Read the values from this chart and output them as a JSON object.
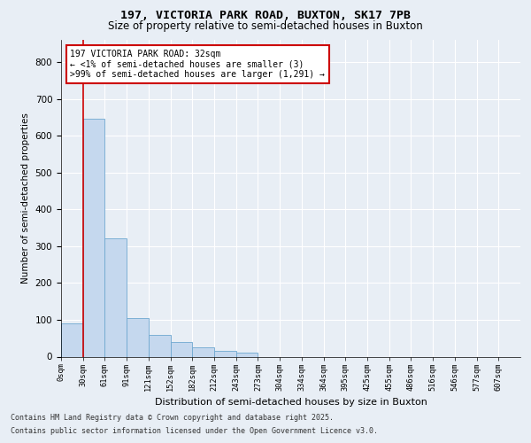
{
  "title_line1": "197, VICTORIA PARK ROAD, BUXTON, SK17 7PB",
  "title_line2": "Size of property relative to semi-detached houses in Buxton",
  "xlabel": "Distribution of semi-detached houses by size in Buxton",
  "ylabel": "Number of semi-detached properties",
  "categories": [
    "0sqm",
    "30sqm",
    "61sqm",
    "91sqm",
    "121sqm",
    "152sqm",
    "182sqm",
    "212sqm",
    "243sqm",
    "273sqm",
    "304sqm",
    "334sqm",
    "364sqm",
    "395sqm",
    "425sqm",
    "455sqm",
    "486sqm",
    "516sqm",
    "546sqm",
    "577sqm",
    "607sqm"
  ],
  "bar_values": [
    90,
    645,
    320,
    105,
    60,
    40,
    25,
    15,
    10,
    0,
    0,
    0,
    0,
    0,
    0,
    0,
    0,
    0,
    0,
    0,
    0
  ],
  "bar_color": "#c5d8ee",
  "bar_edge_color": "#6fa8d0",
  "ylim": [
    0,
    860
  ],
  "yticks": [
    0,
    100,
    200,
    300,
    400,
    500,
    600,
    700,
    800
  ],
  "annotation_text": "197 VICTORIA PARK ROAD: 32sqm\n← <1% of semi-detached houses are smaller (3)\n>99% of semi-detached houses are larger (1,291) →",
  "annotation_box_color": "#ffffff",
  "annotation_border_color": "#cc0000",
  "property_bar_index": 1,
  "footer_line1": "Contains HM Land Registry data © Crown copyright and database right 2025.",
  "footer_line2": "Contains public sector information licensed under the Open Government Licence v3.0.",
  "bg_color": "#e8eef5",
  "plot_bg_color": "#e8eef5",
  "grid_color": "#ffffff"
}
